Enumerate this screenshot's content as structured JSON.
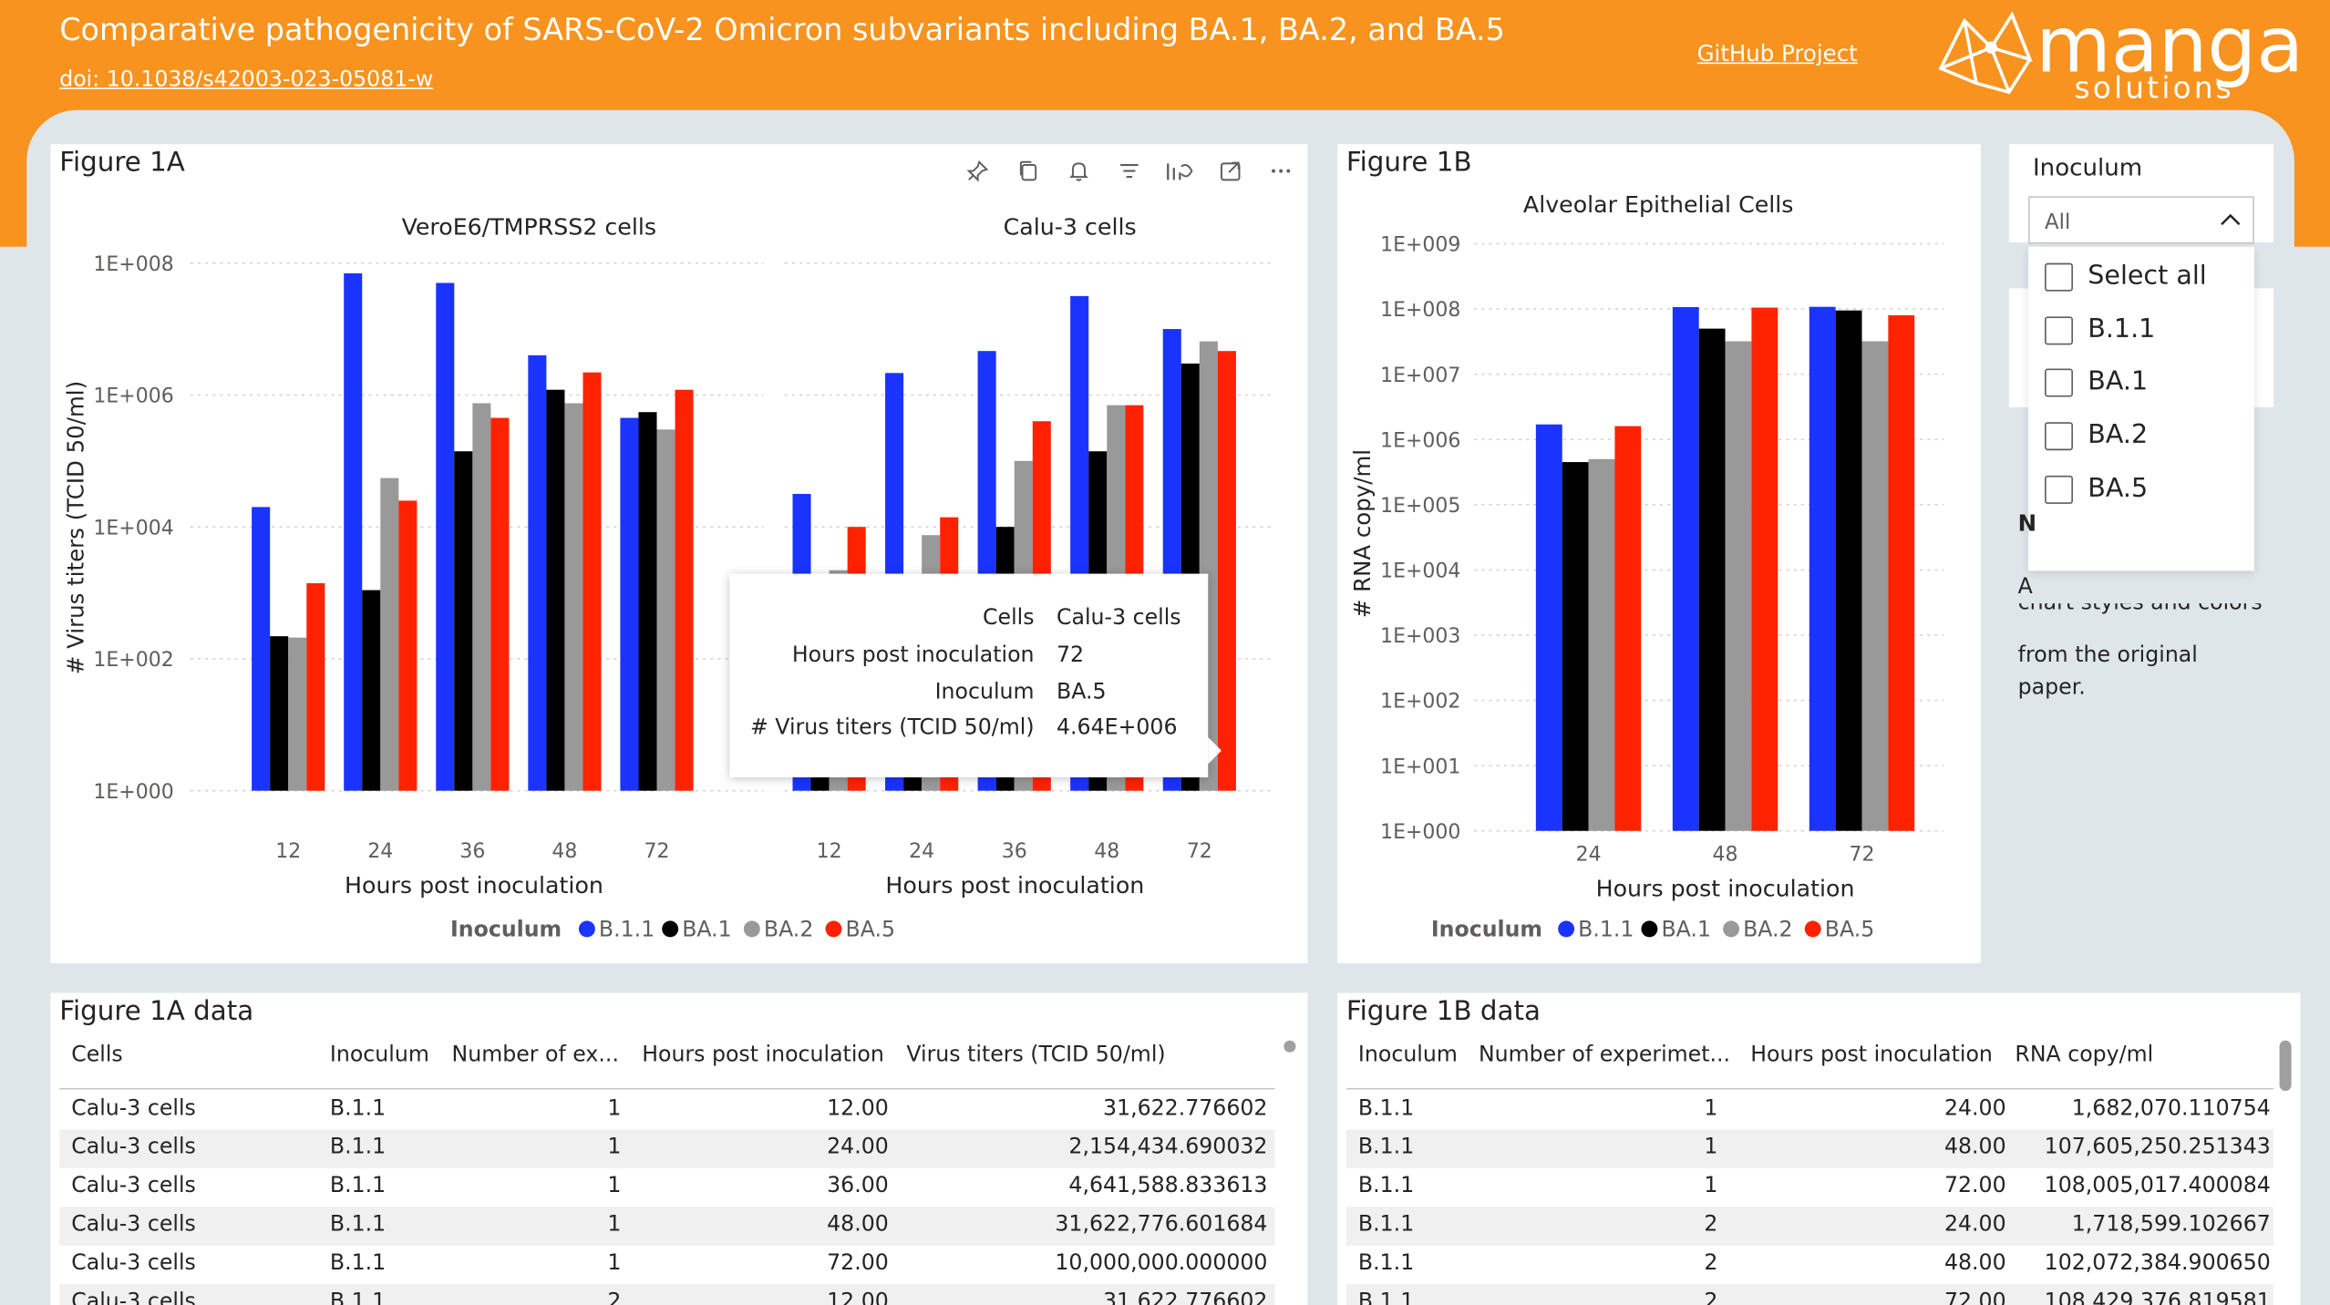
{
  "header": {
    "title": "Comparative pathogenicity of SARS-CoV-2 Omicron subvariants including BA.1, BA.2, and BA.5",
    "doi": "doi: 10.1038/s42003-023-05081-w",
    "github_link": "GitHub Project",
    "logo_text": "manga",
    "logo_subtext": "solutions",
    "colors": {
      "brand": "#f7931e",
      "background": "#dfe6ea"
    }
  },
  "visual_header_icons": [
    "pin-icon",
    "copy-icon",
    "bell-icon",
    "filter-icon",
    "analytics-icon",
    "focus-mode-icon",
    "more-options-icon"
  ],
  "figure_1a": {
    "title": "Figure 1A",
    "panels": [
      {
        "title": "VeroE6/TMPRSS2 cells"
      },
      {
        "title": "Calu-3 cells"
      }
    ],
    "tooltip": {
      "rows": [
        {
          "label": "Cells",
          "value": "Calu-3 cells"
        },
        {
          "label": "Hours post inoculation",
          "value": "72"
        },
        {
          "label": "Inoculum",
          "value": "BA.5"
        },
        {
          "label": "# Virus titers (TCID 50/ml)",
          "value": "4.64E+006"
        }
      ]
    }
  },
  "figure_1b": {
    "title": "Figure 1B",
    "panel_title": "Alveolar Epithelial Cells"
  },
  "legend": {
    "title": "Inoculum",
    "items": [
      {
        "name": "B.1.1",
        "color": "#1a33ff"
      },
      {
        "name": "BA.1",
        "color": "#000000"
      },
      {
        "name": "BA.2",
        "color": "#999999"
      },
      {
        "name": "BA.5",
        "color": "#ff2200"
      }
    ]
  },
  "chart_data": [
    {
      "type": "bar",
      "title": "VeroE6/TMPRSS2 cells",
      "xlabel": "Hours post inoculation",
      "ylabel": "# Virus titers (TCID 50/ml)",
      "yscale": "log",
      "ylim": [
        1,
        100000000
      ],
      "yticks": [
        "1E+000",
        "1E+002",
        "1E+004",
        "1E+006",
        "1E+008"
      ],
      "categories": [
        "12",
        "24",
        "36",
        "48",
        "72"
      ],
      "series": [
        {
          "name": "B.1.1",
          "color": "#1a33ff",
          "values": [
            20000,
            70000000,
            50000000,
            4000000,
            450000
          ]
        },
        {
          "name": "BA.1",
          "color": "#000000",
          "values": [
            220,
            1100,
            140000,
            1200000,
            550000
          ]
        },
        {
          "name": "BA.2",
          "color": "#999999",
          "values": [
            210,
            55000,
            750000,
            750000,
            300000
          ]
        },
        {
          "name": "BA.5",
          "color": "#ff2200",
          "values": [
            1400,
            25000,
            450000,
            2200000,
            1200000
          ]
        }
      ],
      "legend": "bottom",
      "grid": true
    },
    {
      "type": "bar",
      "title": "Calu-3 cells",
      "xlabel": "Hours post inoculation",
      "ylabel": "# Virus titers (TCID 50/ml)",
      "yscale": "log",
      "ylim": [
        1,
        100000000
      ],
      "categories": [
        "12",
        "24",
        "36",
        "48",
        "72"
      ],
      "series": [
        {
          "name": "B.1.1",
          "color": "#1a33ff",
          "values": [
            31622.776602,
            2154434.690032,
            4641588.833613,
            31622776.601684,
            10000000
          ]
        },
        {
          "name": "BA.1",
          "color": "#000000",
          "values": [
            100,
            100,
            10000,
            140000,
            3000000
          ]
        },
        {
          "name": "BA.2",
          "color": "#999999",
          "values": [
            2200,
            7500,
            100000,
            700000,
            6500000
          ]
        },
        {
          "name": "BA.5",
          "color": "#ff2200",
          "values": [
            10000,
            14000,
            400000,
            700000,
            4640000
          ]
        }
      ],
      "legend": "bottom",
      "grid": true
    },
    {
      "type": "bar",
      "title": "Alveolar Epithelial Cells",
      "xlabel": "Hours post inoculation",
      "ylabel": "# RNA copy/ml",
      "yscale": "log",
      "ylim": [
        1,
        1000000000
      ],
      "yticks": [
        "1E+000",
        "1E+001",
        "1E+002",
        "1E+003",
        "1E+004",
        "1E+005",
        "1E+006",
        "1E+007",
        "1E+008",
        "1E+009"
      ],
      "categories": [
        "24",
        "48",
        "72"
      ],
      "series": [
        {
          "name": "B.1.1",
          "color": "#1a33ff",
          "values": [
            1700000,
            107000000,
            108000000
          ]
        },
        {
          "name": "BA.1",
          "color": "#000000",
          "values": [
            450000,
            50000000,
            95000000
          ]
        },
        {
          "name": "BA.2",
          "color": "#999999",
          "values": [
            500000,
            32000000,
            32000000
          ]
        },
        {
          "name": "BA.5",
          "color": "#ff2200",
          "values": [
            1600000,
            105000000,
            80000000
          ]
        }
      ],
      "legend": "bottom",
      "grid": true
    }
  ],
  "slicer": {
    "title": "Inoculum",
    "selected": "All",
    "options": [
      "Select all",
      "B.1.1",
      "BA.1",
      "BA.2",
      "BA.5"
    ]
  },
  "note": {
    "partial_first": "N",
    "partial_second": "A",
    "clipped_line": "chart styles and colors",
    "lines": [
      "from the original",
      "paper."
    ]
  },
  "table_1a": {
    "title": "Figure 1A data",
    "columns": [
      "Cells",
      "Inoculum",
      "Number of ex...",
      "Hours post inoculation",
      "Virus titers (TCID 50/ml)"
    ],
    "rows": [
      [
        "Calu-3 cells",
        "B.1.1",
        "1",
        "12.00",
        "31,622.776602"
      ],
      [
        "Calu-3 cells",
        "B.1.1",
        "1",
        "24.00",
        "2,154,434.690032"
      ],
      [
        "Calu-3 cells",
        "B.1.1",
        "1",
        "36.00",
        "4,641,588.833613"
      ],
      [
        "Calu-3 cells",
        "B.1.1",
        "1",
        "48.00",
        "31,622,776.601684"
      ],
      [
        "Calu-3 cells",
        "B.1.1",
        "1",
        "72.00",
        "10,000,000.000000"
      ],
      [
        "Calu-3 cells",
        "B.1.1",
        "2",
        "12.00",
        "31,622.776602"
      ]
    ]
  },
  "table_1b": {
    "title": "Figure 1B data",
    "columns": [
      "Inoculum",
      "Number of experimet...",
      "Hours post inoculation",
      "RNA copy/ml"
    ],
    "rows": [
      [
        "B.1.1",
        "1",
        "24.00",
        "1,682,070.110754"
      ],
      [
        "B.1.1",
        "1",
        "48.00",
        "107,605,250.251343"
      ],
      [
        "B.1.1",
        "1",
        "72.00",
        "108,005,017.400084"
      ],
      [
        "B.1.1",
        "2",
        "24.00",
        "1,718,599.102667"
      ],
      [
        "B.1.1",
        "2",
        "48.00",
        "102,072,384.900650"
      ],
      [
        "B.1.1",
        "2",
        "72.00",
        "108,429,376.819581"
      ]
    ]
  }
}
